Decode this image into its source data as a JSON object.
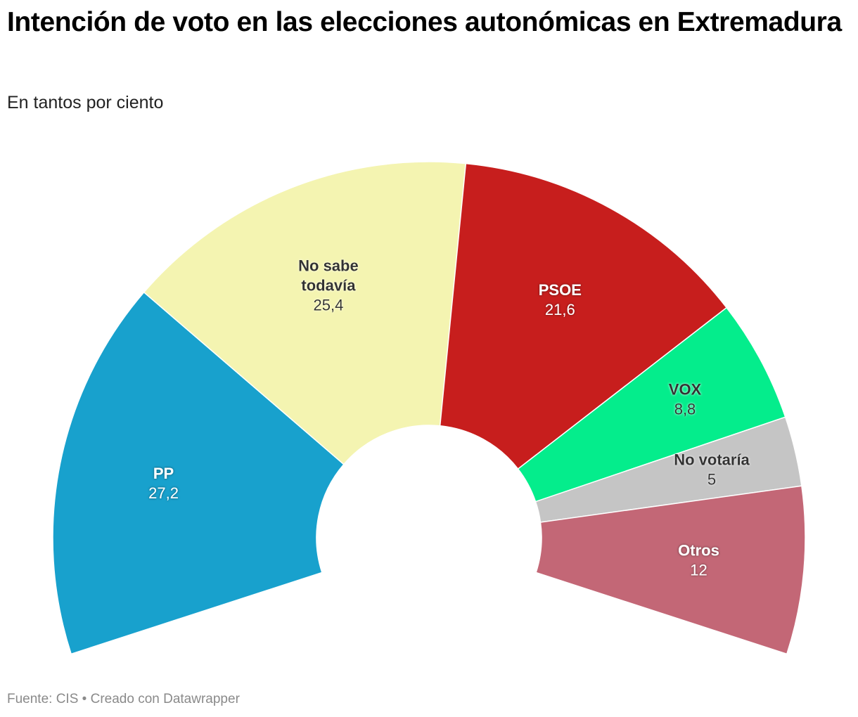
{
  "header": {
    "title": "Intención de voto en las elecciones autonómicas en Extremadura",
    "subtitle": "En tantos por ciento"
  },
  "footer": {
    "source": "Fuente: CIS",
    "separator": "•",
    "credit": "Creado con Datawrapper"
  },
  "chart_data": {
    "type": "pie",
    "variant": "parliament-arc",
    "title": "Intención de voto en las elecciones autonómicas en Extremadura",
    "subtitle": "En tantos por ciento",
    "categories": [
      "PP",
      "No sabe todavía",
      "PSOE",
      "VOX",
      "No votaría",
      "Otros"
    ],
    "values": [
      27.2,
      25.4,
      21.6,
      8.8,
      5,
      12
    ],
    "value_labels": [
      "27,2",
      "25,4",
      "21,6",
      "8,8",
      "5",
      "12"
    ],
    "label_lines": [
      [
        "PP"
      ],
      [
        "No sabe",
        "todavía"
      ],
      [
        "PSOE"
      ],
      [
        "VOX"
      ],
      [
        "No votaría"
      ],
      [
        "Otros"
      ]
    ],
    "colors": [
      "#18a1cd",
      "#f4f4b1",
      "#c71e1d",
      "#04ed8c",
      "#c5c5c5",
      "#c36776"
    ],
    "label_colors": [
      "#ffffff",
      "#333333",
      "#ffffff",
      "#333333",
      "#333333",
      "#ffffff"
    ]
  }
}
